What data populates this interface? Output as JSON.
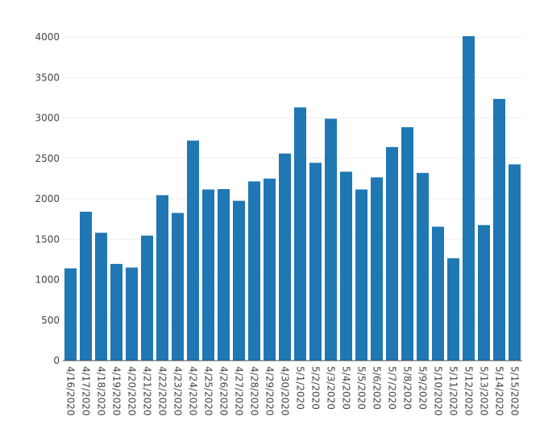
{
  "chart_data": {
    "type": "bar",
    "title": "",
    "xlabel": "",
    "ylabel": "",
    "categories": [
      "4/16/2020",
      "4/17/2020",
      "4/18/2020",
      "4/19/2020",
      "4/20/2020",
      "4/21/2020",
      "4/22/2020",
      "4/23/2020",
      "4/24/2020",
      "4/25/2020",
      "4/26/2020",
      "4/27/2020",
      "4/28/2020",
      "4/29/2020",
      "4/30/2020",
      "5/1/2020",
      "5/2/2020",
      "5/3/2020",
      "5/4/2020",
      "5/5/2020",
      "5/6/2020",
      "5/7/2020",
      "5/8/2020",
      "5/9/2020",
      "5/10/2020",
      "5/11/2020",
      "5/12/2020",
      "5/13/2020",
      "5/14/2020",
      "5/15/2020"
    ],
    "values": [
      1140,
      1840,
      1580,
      1195,
      1150,
      1545,
      2045,
      1825,
      2720,
      2115,
      2120,
      1975,
      2215,
      2250,
      2560,
      3130,
      2445,
      2990,
      2335,
      2115,
      2265,
      2640,
      2885,
      2320,
      1655,
      1265,
      4010,
      1675,
      3235,
      2425
    ],
    "yticks": [
      0,
      500,
      1000,
      1500,
      2000,
      2500,
      3000,
      3500,
      4000
    ],
    "ylim": [
      0,
      4010
    ],
    "grid": true,
    "bar_color": "#1f77b4"
  }
}
